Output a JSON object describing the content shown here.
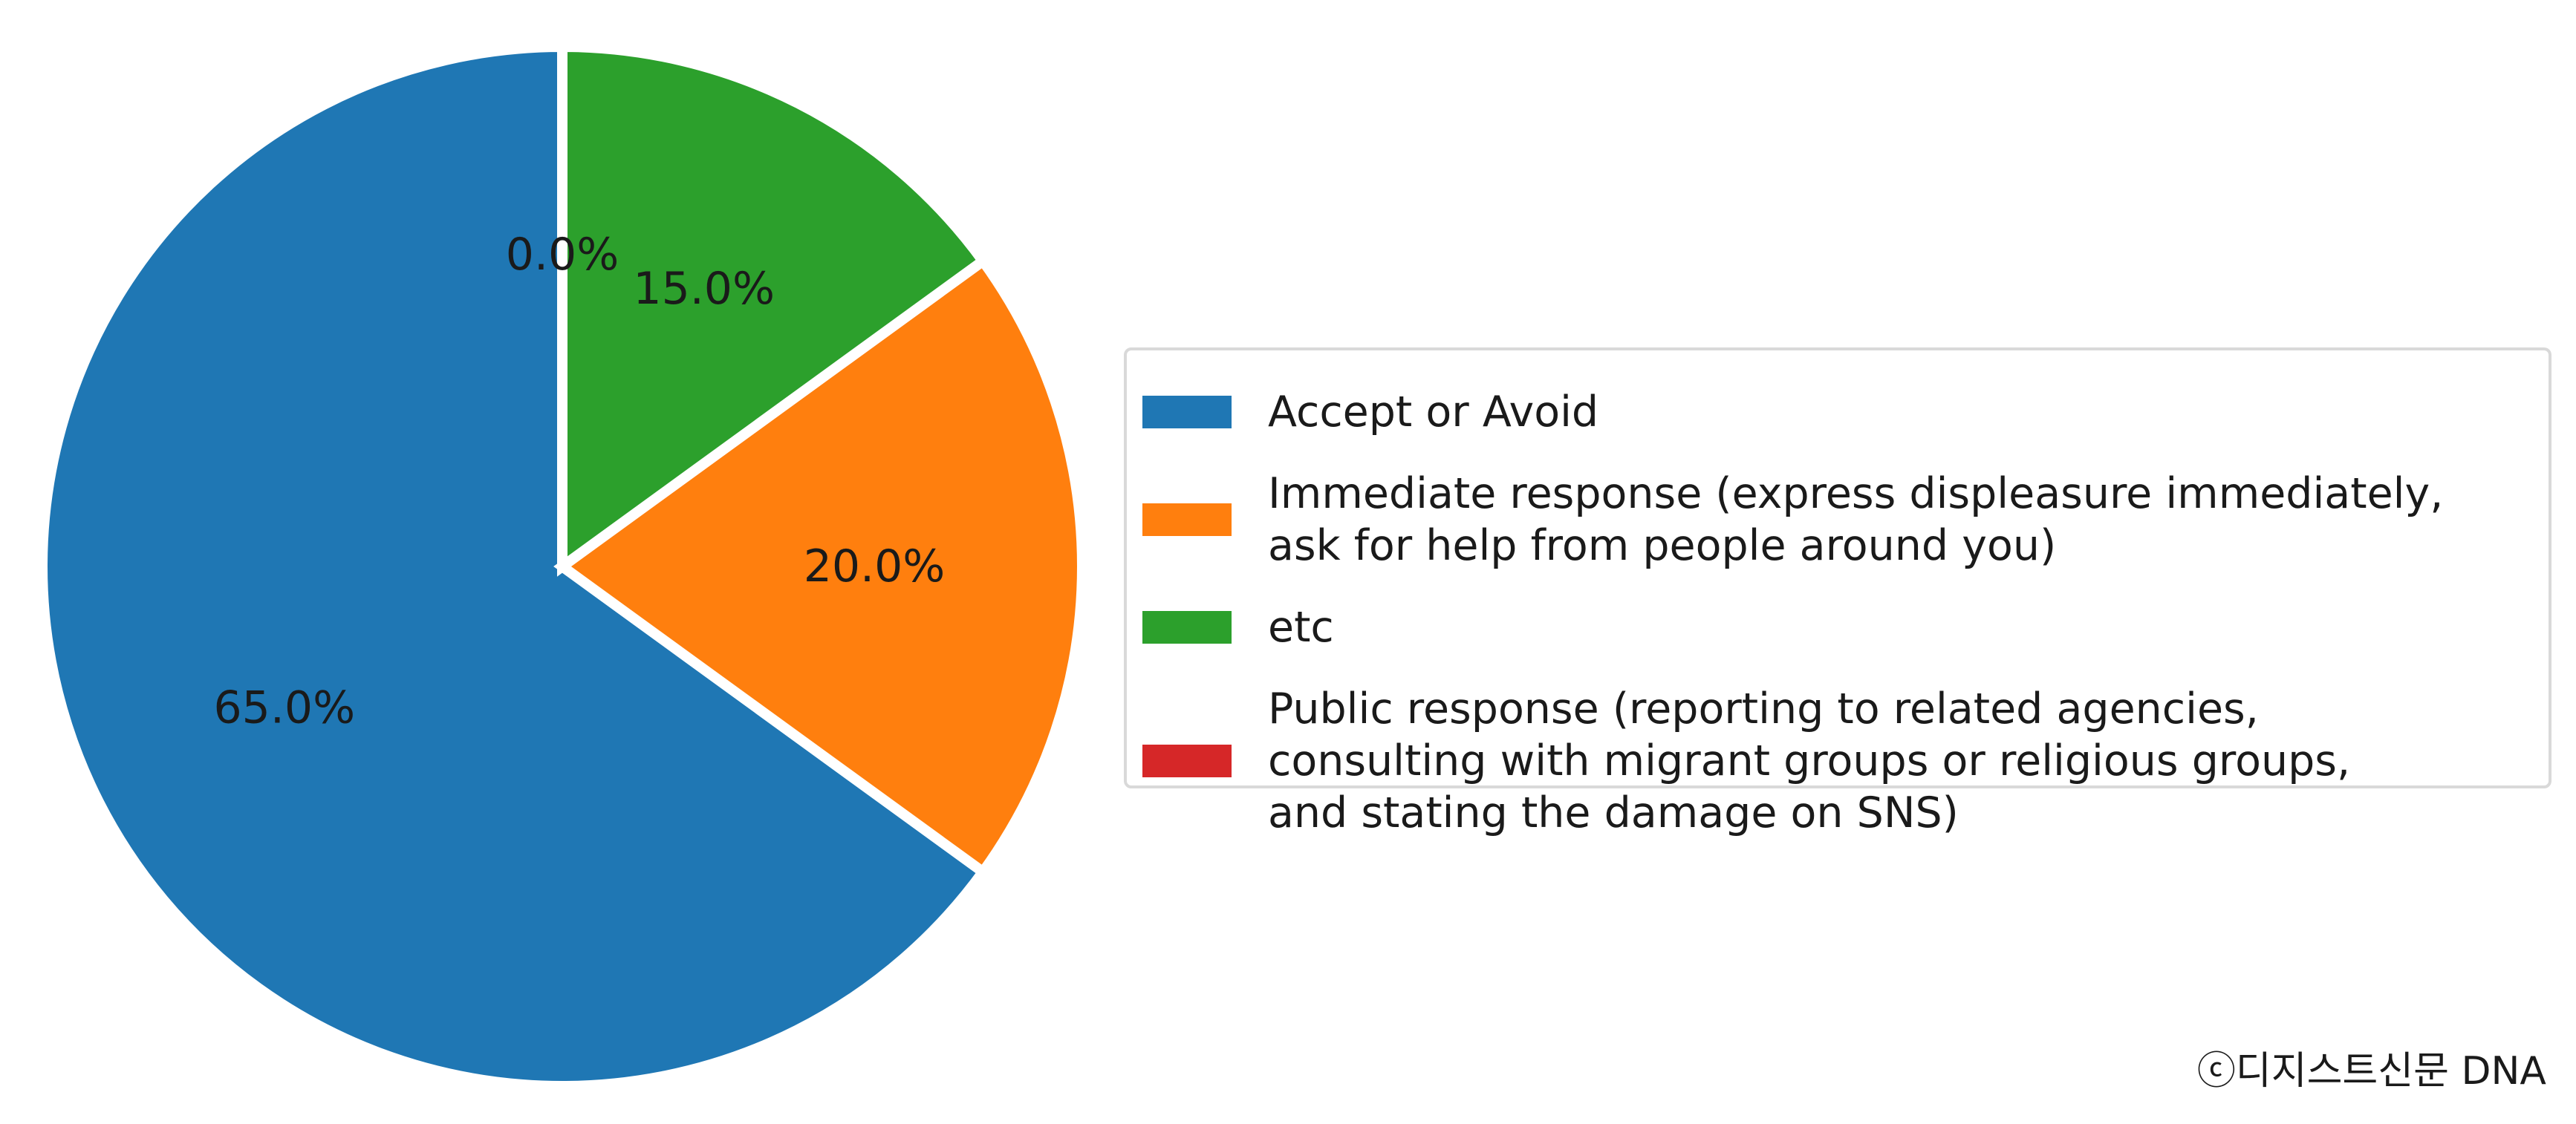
{
  "chart_data": {
    "type": "pie",
    "labels": [
      "Accept or Avoid",
      "Immediate response (express displeasure immediately,\nask for help from people around you)",
      "etc",
      "Public response (reporting to related agencies,\nconsulting with migrant groups or religious groups,\nand stating the damage on SNS)"
    ],
    "values": [
      65.0,
      20.0,
      15.0,
      0.0
    ],
    "value_labels": [
      "65.0%",
      "20.0%",
      "15.0%",
      "0.0%"
    ],
    "colors": [
      "#1f77b4",
      "#ff7f0e",
      "#2ca02c",
      "#d62728"
    ],
    "start_angle_deg": 90,
    "direction": "counterclockwise",
    "legend_position": "right",
    "title": ""
  },
  "credit": "ⓒ디지스트신문 DNA"
}
